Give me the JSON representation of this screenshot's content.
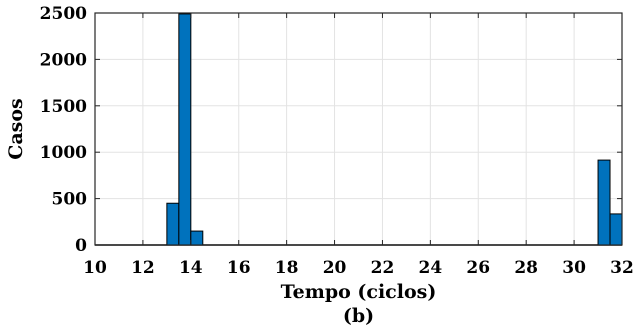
{
  "chart_data": {
    "type": "bar",
    "title": "",
    "xlabel": "Tempo (ciclos)",
    "ylabel": "Casos",
    "caption": "(b)",
    "xlim": [
      10,
      32
    ],
    "ylim": [
      0,
      2500
    ],
    "xticks": [
      10,
      12,
      14,
      16,
      18,
      20,
      22,
      24,
      26,
      28,
      30,
      32
    ],
    "yticks": [
      0,
      500,
      1000,
      1500,
      2000,
      2500
    ],
    "grid": true,
    "bin_width": 0.5,
    "bins": [
      {
        "start": 13.0,
        "value": 450
      },
      {
        "start": 13.5,
        "value": 2490
      },
      {
        "start": 14.0,
        "value": 150
      },
      {
        "start": 31.0,
        "value": 915
      },
      {
        "start": 31.5,
        "value": 335
      }
    ],
    "zero_bins_range": [
      10.0,
      32.0
    ],
    "bar_color": "#0072BD",
    "edge_color": "#000000"
  }
}
